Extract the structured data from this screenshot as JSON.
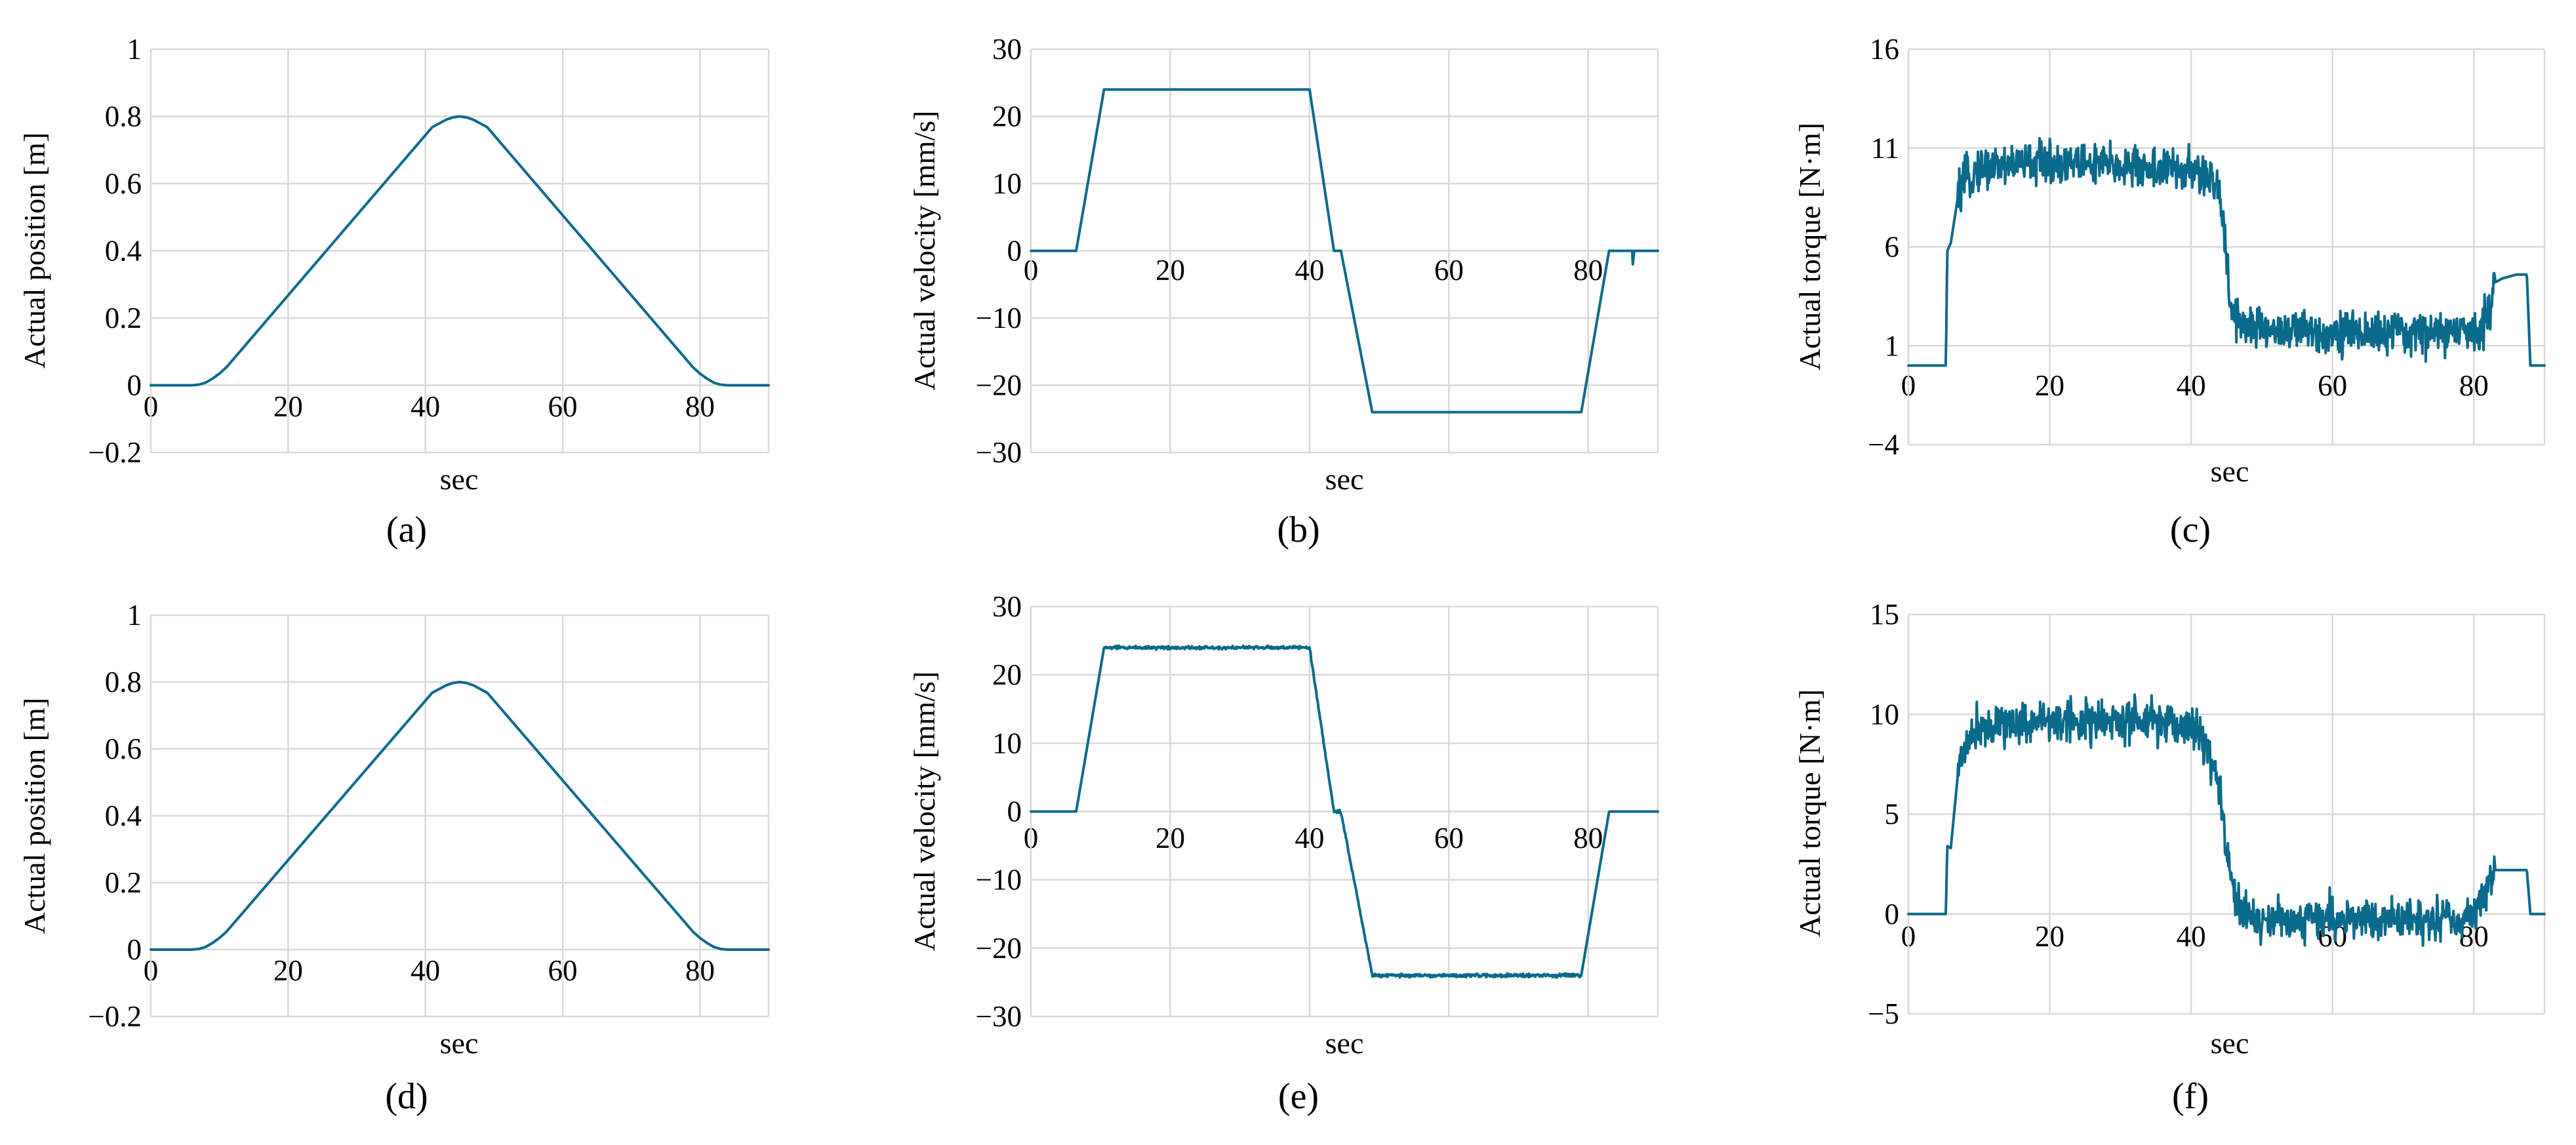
{
  "figure": {
    "series_color": "#0a6a8c",
    "grid_color": "#d9d9d9",
    "panels": [
      {
        "caption": "(a)",
        "chart_data": {
          "type": "line",
          "xlabel": "sec",
          "ylabel": "Actual position [m]",
          "xlim": [
            0,
            90
          ],
          "ylim": [
            -0.2,
            1
          ],
          "xticks": [
            "0",
            "20",
            "40",
            "60",
            "80"
          ],
          "yticks": [
            "−0.2",
            "0",
            "0.2",
            "0.4",
            "0.6",
            "0.8",
            "1"
          ],
          "ytick_values": [
            -0.2,
            0,
            0.2,
            0.4,
            0.6,
            0.8,
            1
          ],
          "grid": true,
          "noise": 0,
          "series": [
            {
              "x": [
                0,
                6,
                7,
                8,
                9,
                10,
                11,
                41,
                43,
                44,
                45,
                46,
                47,
                49,
                79,
                80,
                81,
                82,
                83,
                84,
                90
              ],
              "y": [
                0,
                0,
                0.002,
                0.008,
                0.02,
                0.035,
                0.053,
                0.768,
                0.79,
                0.797,
                0.8,
                0.797,
                0.79,
                0.768,
                0.053,
                0.035,
                0.02,
                0.008,
                0.002,
                0,
                0
              ]
            }
          ]
        }
      },
      {
        "caption": "(b)",
        "chart_data": {
          "type": "line",
          "xlabel": "sec",
          "ylabel": "Actual velocity [mm/s]",
          "xlim": [
            0,
            90
          ],
          "ylim": [
            -30,
            30
          ],
          "xticks": [
            "0",
            "20",
            "40",
            "60",
            "80"
          ],
          "yticks": [
            "−30",
            "−20",
            "−10",
            "0",
            "10",
            "20",
            "30"
          ],
          "ytick_values": [
            -30,
            -20,
            -10,
            0,
            10,
            20,
            30
          ],
          "grid": true,
          "noise": 0,
          "series": [
            {
              "x": [
                0,
                6.5,
                10.5,
                40,
                43.5,
                44.5,
                49,
                79,
                83,
                86,
                86.3,
                86.4,
                86.6,
                86.8,
                90
              ],
              "y": [
                0,
                0,
                24,
                24,
                0,
                0,
                -24,
                -24,
                0,
                0,
                0,
                -2,
                0,
                0,
                0
              ]
            }
          ]
        }
      },
      {
        "caption": "(c)",
        "chart_data": {
          "type": "line",
          "xlabel": "sec",
          "ylabel": "Actual torque [N·m]",
          "xlim": [
            0,
            90
          ],
          "ylim": [
            -4,
            16
          ],
          "xticks": [
            "0",
            "20",
            "40",
            "60",
            "80"
          ],
          "yticks": [
            "−4",
            "1",
            "6",
            "11",
            "16"
          ],
          "ytick_values": [
            -4,
            1,
            6,
            11,
            16
          ],
          "grid": true,
          "noise": 1.6,
          "noise_from": 7,
          "noise_to": 83,
          "series": [
            {
              "x": [
                0,
                5.3,
                5.5,
                6,
                7,
                8,
                10,
                15,
                20,
                30,
                38,
                40,
                42,
                44,
                45,
                45.5,
                47,
                50,
                60,
                70,
                80,
                82,
                83,
                84,
                86,
                87.5,
                88,
                90
              ],
              "y": [
                0,
                0,
                5.8,
                6.2,
                8.5,
                9.3,
                10,
                10.2,
                10.3,
                10.1,
                9.9,
                9.8,
                9.6,
                8.8,
                6,
                3,
                2.2,
                1.8,
                1.7,
                1.6,
                1.7,
                2.6,
                4.2,
                4.4,
                4.6,
                4.6,
                0,
                0
              ]
            }
          ]
        }
      },
      {
        "caption": "(d)",
        "chart_data": {
          "type": "line",
          "xlabel": "sec",
          "ylabel": "Actual position [m]",
          "xlim": [
            0,
            90
          ],
          "ylim": [
            -0.2,
            1
          ],
          "xticks": [
            "0",
            "20",
            "40",
            "60",
            "80"
          ],
          "yticks": [
            "−0.2",
            "0",
            "0.2",
            "0.4",
            "0.6",
            "0.8",
            "1"
          ],
          "ytick_values": [
            -0.2,
            0,
            0.2,
            0.4,
            0.6,
            0.8,
            1
          ],
          "grid": true,
          "noise": 0,
          "series": [
            {
              "x": [
                0,
                6,
                7,
                8,
                9,
                10,
                11,
                41,
                43,
                44,
                45,
                46,
                47,
                49,
                79,
                80,
                81,
                82,
                83,
                84,
                90
              ],
              "y": [
                0,
                0,
                0.002,
                0.008,
                0.02,
                0.035,
                0.053,
                0.768,
                0.79,
                0.797,
                0.8,
                0.797,
                0.79,
                0.768,
                0.053,
                0.035,
                0.02,
                0.008,
                0.002,
                0,
                0
              ]
            }
          ]
        }
      },
      {
        "caption": "(e)",
        "chart_data": {
          "type": "line",
          "xlabel": "sec",
          "ylabel": "Actual velocity [mm/s]",
          "xlim": [
            0,
            90
          ],
          "ylim": [
            -30,
            30
          ],
          "xticks": [
            "0",
            "20",
            "40",
            "60",
            "80"
          ],
          "yticks": [
            "−30",
            "−20",
            "−10",
            "0",
            "10",
            "20",
            "30"
          ],
          "ytick_values": [
            -30,
            -20,
            -10,
            0,
            10,
            20,
            30
          ],
          "grid": true,
          "noise": 0.35,
          "noise_from": 10.5,
          "noise_to": 79,
          "series": [
            {
              "x": [
                0,
                6.5,
                10.5,
                40,
                43.5,
                44.5,
                49,
                79,
                83,
                90
              ],
              "y": [
                0,
                0,
                24,
                24,
                0,
                0,
                -24,
                -24,
                0,
                0
              ]
            }
          ]
        }
      },
      {
        "caption": "(f)",
        "chart_data": {
          "type": "line",
          "xlabel": "sec",
          "ylabel": "Actual torque [N·m]",
          "xlim": [
            0,
            90
          ],
          "ylim": [
            -5,
            15
          ],
          "xticks": [
            "0",
            "20",
            "40",
            "60",
            "80"
          ],
          "yticks": [
            "−5",
            "0",
            "5",
            "10",
            "15"
          ],
          "ytick_values": [
            -5,
            0,
            5,
            10,
            15
          ],
          "grid": true,
          "noise": 1.6,
          "noise_from": 7,
          "noise_to": 83,
          "series": [
            {
              "x": [
                0,
                5.3,
                5.5,
                6,
                7,
                8,
                10,
                15,
                20,
                30,
                38,
                40,
                41,
                42,
                44,
                45,
                46,
                47,
                50,
                60,
                70,
                80,
                82,
                83,
                84,
                86,
                87.5,
                88,
                90
              ],
              "y": [
                0,
                0,
                3.4,
                3.3,
                7,
                8.5,
                9.5,
                9.6,
                9.7,
                9.6,
                9.5,
                9.4,
                9.2,
                8.5,
                6.5,
                3,
                1.3,
                0,
                -0.3,
                -0.2,
                -0.3,
                -0.2,
                1.5,
                2.2,
                2.2,
                2.2,
                2.2,
                0,
                0
              ]
            }
          ]
        }
      }
    ]
  }
}
